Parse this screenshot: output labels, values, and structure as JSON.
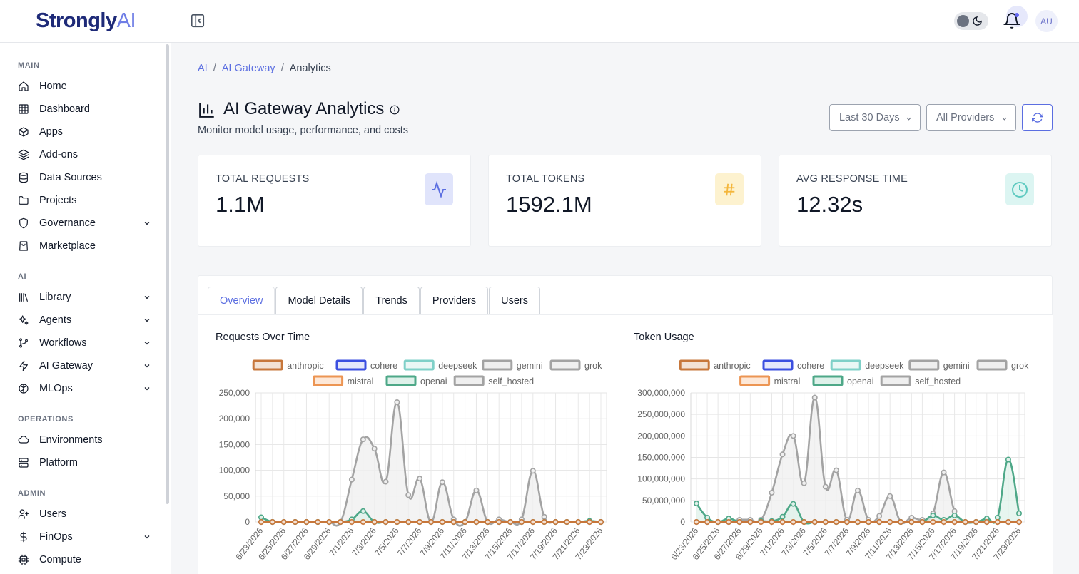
{
  "brand": {
    "name_a": "Strongly",
    "name_b": "AI"
  },
  "sidebar": {
    "sections": [
      {
        "title": "MAIN",
        "items": [
          {
            "label": "Home",
            "icon": "home-icon",
            "expandable": false
          },
          {
            "label": "Dashboard",
            "icon": "grid-icon",
            "expandable": false
          },
          {
            "label": "Apps",
            "icon": "box-icon",
            "expandable": false
          },
          {
            "label": "Add-ons",
            "icon": "layers-icon",
            "expandable": false
          },
          {
            "label": "Data Sources",
            "icon": "database-icon",
            "expandable": false
          },
          {
            "label": "Projects",
            "icon": "folder-icon",
            "expandable": false
          },
          {
            "label": "Governance",
            "icon": "shield-icon",
            "expandable": true
          },
          {
            "label": "Marketplace",
            "icon": "shopping-bag-icon",
            "expandable": false
          }
        ]
      },
      {
        "title": "AI",
        "items": [
          {
            "label": "Library",
            "icon": "library-icon",
            "expandable": true
          },
          {
            "label": "Agents",
            "icon": "sparkles-icon",
            "expandable": true
          },
          {
            "label": "Workflows",
            "icon": "git-branch-icon",
            "expandable": true
          },
          {
            "label": "AI Gateway",
            "icon": "zap-icon",
            "expandable": true
          },
          {
            "label": "MLOps",
            "icon": "brain-icon",
            "expandable": true
          }
        ]
      },
      {
        "title": "OPERATIONS",
        "items": [
          {
            "label": "Environments",
            "icon": "cloud-icon",
            "expandable": false
          },
          {
            "label": "Platform",
            "icon": "server-icon",
            "expandable": false
          }
        ]
      },
      {
        "title": "ADMIN",
        "items": [
          {
            "label": "Users",
            "icon": "user-plus-icon",
            "expandable": false
          },
          {
            "label": "FinOps",
            "icon": "dollar-icon",
            "expandable": true
          },
          {
            "label": "Compute",
            "icon": "cpu-icon",
            "expandable": false
          }
        ]
      }
    ]
  },
  "topbar": {
    "avatar_initials": "AU"
  },
  "breadcrumb": {
    "items": [
      "AI",
      "AI Gateway",
      "Analytics"
    ]
  },
  "page": {
    "title": "AI Gateway Analytics",
    "subtitle": "Monitor model usage, performance, and costs",
    "filters": {
      "range": "Last 30 Days",
      "provider": "All Providers"
    }
  },
  "stats": [
    {
      "label": "TOTAL REQUESTS",
      "value": "1.1M",
      "icon": "activity-icon",
      "icon_color": "#5b6ee1",
      "icon_bg": "#e0e4fb"
    },
    {
      "label": "TOTAL TOKENS",
      "value": "1592.1M",
      "icon": "hash-icon",
      "icon_color": "#f4b63b",
      "icon_bg": "#fdf2cf"
    },
    {
      "label": "AVG RESPONSE TIME",
      "value": "12.32s",
      "icon": "clock-icon",
      "icon_color": "#5ec9c0",
      "icon_bg": "#dcf5f2"
    }
  ],
  "tabs": [
    "Overview",
    "Model Details",
    "Trends",
    "Providers",
    "Users"
  ],
  "active_tab": "Overview",
  "chart_data": [
    {
      "type": "area",
      "title": "Requests Over Time",
      "x": [
        "6/23/2026",
        "6/24/2026",
        "6/25/2026",
        "6/26/2026",
        "6/27/2026",
        "6/28/2026",
        "6/29/2026",
        "6/30/2026",
        "7/1/2026",
        "7/2/2026",
        "7/3/2026",
        "7/4/2026",
        "7/5/2026",
        "7/6/2026",
        "7/7/2026",
        "7/8/2026",
        "7/9/2026",
        "7/10/2026",
        "7/11/2026",
        "7/12/2026",
        "7/13/2026",
        "7/14/2026",
        "7/15/2026",
        "7/16/2026",
        "7/17/2026",
        "7/18/2026",
        "7/19/2026",
        "7/20/2026",
        "7/21/2026",
        "7/22/2026",
        "7/23/2026"
      ],
      "xticks": [
        "6/23/2026",
        "6/25/2026",
        "6/27/2026",
        "6/29/2026",
        "7/1/2026",
        "7/3/2026",
        "7/5/2026",
        "7/7/2026",
        "7/9/2026",
        "7/11/2026",
        "7/13/2026",
        "7/15/2026",
        "7/17/2026",
        "7/19/2026",
        "7/21/2026",
        "7/23/2026"
      ],
      "ylim": [
        0,
        250000
      ],
      "yticks": [
        "0",
        "50,000",
        "100,000",
        "150,000",
        "200,000",
        "250,000"
      ],
      "legend": [
        "anthropic",
        "cohere",
        "deepseek",
        "gemini",
        "grok",
        "mistral",
        "openai",
        "self_hosted"
      ],
      "series": [
        {
          "name": "self_hosted",
          "color": "#a3a3a3",
          "values": [
            0,
            0,
            0,
            0,
            0,
            0,
            0,
            0,
            82000,
            160000,
            142000,
            78000,
            232000,
            52000,
            84000,
            0,
            77000,
            5000,
            0,
            61000,
            0,
            5000,
            0,
            5000,
            99000,
            10000,
            0,
            0,
            0,
            0,
            0
          ]
        },
        {
          "name": "openai",
          "color": "#4ea888",
          "values": [
            9000,
            0,
            0,
            0,
            0,
            0,
            0,
            0,
            5000,
            21000,
            0,
            0,
            0,
            0,
            0,
            0,
            0,
            0,
            0,
            0,
            0,
            0,
            0,
            0,
            0,
            0,
            0,
            0,
            0,
            2000,
            0
          ]
        },
        {
          "name": "anthropic",
          "color": "#c7773b",
          "values": [
            0,
            0,
            0,
            0,
            0,
            0,
            0,
            0,
            0,
            0,
            0,
            0,
            0,
            0,
            0,
            0,
            0,
            0,
            0,
            0,
            0,
            0,
            0,
            0,
            0,
            0,
            0,
            0,
            0,
            0,
            0
          ]
        }
      ]
    },
    {
      "type": "area",
      "title": "Token Usage",
      "x": [
        "6/23/2026",
        "6/24/2026",
        "6/25/2026",
        "6/26/2026",
        "6/27/2026",
        "6/28/2026",
        "6/29/2026",
        "6/30/2026",
        "7/1/2026",
        "7/2/2026",
        "7/3/2026",
        "7/4/2026",
        "7/5/2026",
        "7/6/2026",
        "7/7/2026",
        "7/8/2026",
        "7/9/2026",
        "7/10/2026",
        "7/11/2026",
        "7/12/2026",
        "7/13/2026",
        "7/14/2026",
        "7/15/2026",
        "7/16/2026",
        "7/17/2026",
        "7/18/2026",
        "7/19/2026",
        "7/20/2026",
        "7/21/2026",
        "7/22/2026",
        "7/23/2026"
      ],
      "xticks": [
        "6/23/2026",
        "6/25/2026",
        "6/27/2026",
        "6/29/2026",
        "7/1/2026",
        "7/3/2026",
        "7/5/2026",
        "7/7/2026",
        "7/9/2026",
        "7/11/2026",
        "7/13/2026",
        "7/15/2026",
        "7/17/2026",
        "7/19/2026",
        "7/21/2026",
        "7/23/2026"
      ],
      "ylim": [
        0,
        300000000
      ],
      "yticks": [
        "0",
        "50,000,000",
        "100,000,000",
        "150,000,000",
        "200,000,000",
        "250,000,000",
        "300,000,000"
      ],
      "legend": [
        "anthropic",
        "cohere",
        "deepseek",
        "gemini",
        "grok",
        "mistral",
        "openai",
        "self_hosted"
      ],
      "series": [
        {
          "name": "self_hosted",
          "color": "#a3a3a3",
          "values": [
            0,
            0,
            0,
            0,
            5000000,
            5000000,
            5000000,
            68000000,
            157000000,
            200000000,
            90000000,
            289000000,
            82000000,
            120000000,
            5000000,
            73000000,
            5000000,
            14000000,
            60000000,
            0,
            10000000,
            5000000,
            20000000,
            115000000,
            25000000,
            0,
            0,
            0,
            0,
            0,
            0
          ]
        },
        {
          "name": "openai",
          "color": "#4ea888",
          "values": [
            43000000,
            10000000,
            0,
            8000000,
            0,
            0,
            2000000,
            2000000,
            12000000,
            42000000,
            0,
            0,
            0,
            0,
            0,
            0,
            0,
            0,
            0,
            0,
            0,
            0,
            15000000,
            5000000,
            15000000,
            0,
            0,
            8000000,
            10000000,
            145000000,
            20000000
          ]
        },
        {
          "name": "anthropic",
          "color": "#c7773b",
          "values": [
            0,
            0,
            0,
            0,
            0,
            0,
            0,
            0,
            0,
            0,
            0,
            0,
            0,
            0,
            0,
            0,
            0,
            0,
            0,
            0,
            0,
            0,
            0,
            0,
            0,
            0,
            0,
            0,
            0,
            0,
            0
          ]
        }
      ]
    }
  ],
  "legend_colors": {
    "anthropic": {
      "stroke": "#c7773b",
      "fill": "#f3e2d4"
    },
    "cohere": {
      "stroke": "#3b4fe0",
      "fill": "#e4e7fb"
    },
    "deepseek": {
      "stroke": "#7fd0c8",
      "fill": "#e9f7f5"
    },
    "gemini": {
      "stroke": "#a3a3a3",
      "fill": "#efefef"
    },
    "grok": {
      "stroke": "#a3a3a3",
      "fill": "#efefef"
    },
    "mistral": {
      "stroke": "#ec9553",
      "fill": "#fde8d8"
    },
    "openai": {
      "stroke": "#4ea888",
      "fill": "#dff1ea"
    },
    "self_hosted": {
      "stroke": "#a3a3a3",
      "fill": "#efefef"
    }
  }
}
